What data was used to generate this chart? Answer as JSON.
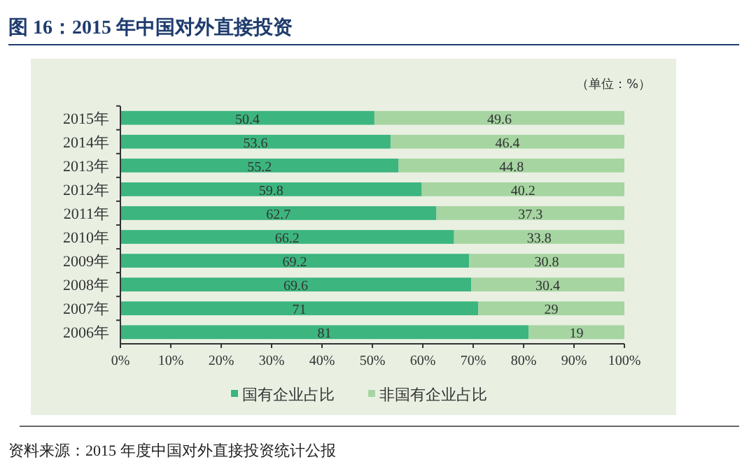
{
  "chart_data": {
    "type": "bar",
    "orientation": "horizontal",
    "stacked": true,
    "title": "图 16：2015 年中国对外直接投资",
    "categories": [
      "2015年",
      "2014年",
      "2013年",
      "2012年",
      "2011年",
      "2010年",
      "2009年",
      "2008年",
      "2007年",
      "2006年"
    ],
    "series": [
      {
        "name": "国有企业占比",
        "color": "#3cb57f",
        "values": [
          50.4,
          53.6,
          55.2,
          59.8,
          62.7,
          66.2,
          69.2,
          69.6,
          71,
          81
        ]
      },
      {
        "name": "非国有企业占比",
        "color": "#a6d5a2",
        "values": [
          49.6,
          46.4,
          44.8,
          40.2,
          37.3,
          33.8,
          30.8,
          30.4,
          29,
          19
        ]
      }
    ],
    "xlim": [
      0,
      100
    ],
    "xticks": [
      {
        "value": 0,
        "label": "0%"
      },
      {
        "value": 10,
        "label": "10%"
      },
      {
        "value": 20,
        "label": "20%"
      },
      {
        "value": 30,
        "label": "30%"
      },
      {
        "value": 40,
        "label": "40%"
      },
      {
        "value": 50,
        "label": "50%"
      },
      {
        "value": 60,
        "label": "60%"
      },
      {
        "value": 70,
        "label": "70%"
      },
      {
        "value": 80,
        "label": "80%"
      },
      {
        "value": 90,
        "label": "90%"
      },
      {
        "value": 100,
        "label": "100%"
      }
    ],
    "data_labels": true,
    "grid": false,
    "legend": "bottom",
    "annotations": [
      "（单位：%）",
      "资料来源：2015 年度中国对外直接投资统计公报"
    ]
  }
}
